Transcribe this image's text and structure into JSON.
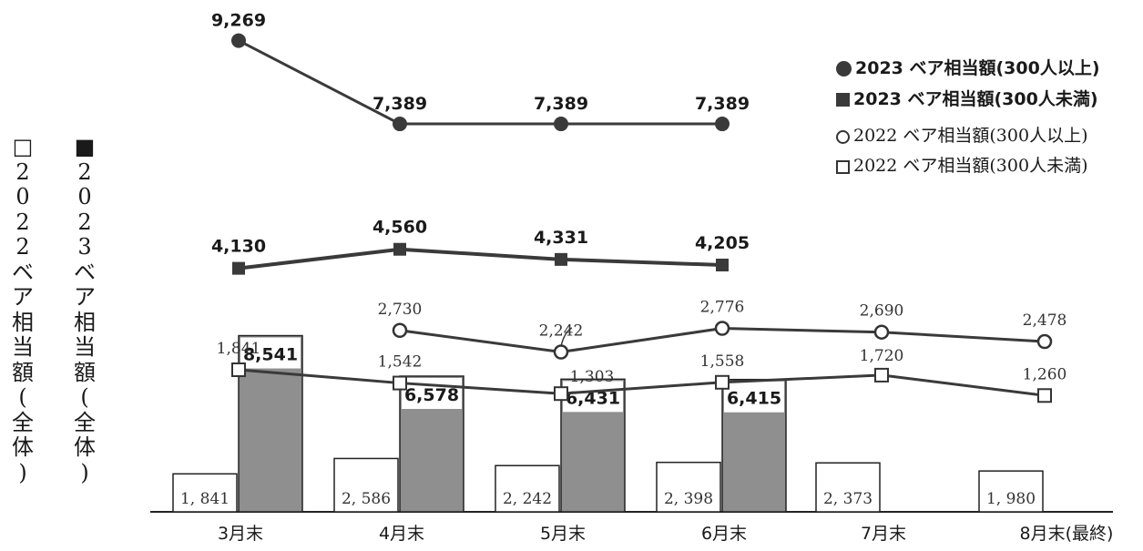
{
  "chart_data": {
    "type": "bar",
    "categories": [
      "3月末",
      "4月末",
      "5月末",
      "6月末",
      "7月末",
      "8月末(最終)"
    ],
    "bars": [
      {
        "name": "2022 ベア相当額(全体)",
        "values": [
          1841,
          2586,
          2242,
          2398,
          2373,
          1980
        ],
        "labels": [
          "1, 841",
          "2, 586",
          "2, 242",
          "2, 398",
          "2, 373",
          "1, 980"
        ],
        "color": "#ffffff"
      },
      {
        "name": "2023 ベア相当額(全体)",
        "values": [
          8541,
          6578,
          6431,
          6415,
          null,
          null
        ],
        "labels": [
          "8,541",
          "6,578",
          "6,431",
          "6,415",
          "",
          ""
        ],
        "color": "#8f8f8f"
      }
    ],
    "lines": [
      {
        "name": "2023 ベア相当額(300人以上)",
        "values": [
          9269,
          7389,
          7389,
          7389,
          null,
          null
        ],
        "labels": [
          "9,269",
          "7,389",
          "7,389",
          "7,389",
          "",
          ""
        ],
        "marker": "filled-circle"
      },
      {
        "name": "2023 ベア相当額(300人未満)",
        "values": [
          4130,
          4560,
          4331,
          4205,
          null,
          null
        ],
        "labels": [
          "4,130",
          "4,560",
          "4,331",
          "4,205",
          "",
          ""
        ],
        "marker": "filled-square"
      },
      {
        "name": "2022 ベア相当額(300人以上)",
        "values": [
          null,
          2730,
          2242,
          2776,
          2690,
          2478
        ],
        "labels": [
          "",
          "2,730",
          "2,242",
          "2,776",
          "2,690",
          "2,478"
        ],
        "marker": "open-circle"
      },
      {
        "name": "2022 ベア相当額(300人未満)",
        "values": [
          1841,
          1542,
          1303,
          1558,
          1720,
          1260
        ],
        "labels": [
          "1,841",
          "1,542",
          "1,303",
          "1,558",
          "1,720",
          "1,260"
        ],
        "marker": "open-square"
      }
    ],
    "y_left_label": "□2022ベア相当額(全体)",
    "y_left_label2": "■2023ベア相当額(全体)",
    "legend_position": "top-right",
    "grid": false
  },
  "legend": [
    {
      "text": "2023 ベア相当額(300人以上)",
      "icon": "filled-circle-icon"
    },
    {
      "text": "2023 ベア相当額(300人未満)",
      "icon": "filled-square-icon"
    },
    {
      "text": "2022 ベア相当額(300人以上)",
      "icon": "open-circle-icon"
    },
    {
      "text": "2022 ベア相当額(300人未満)",
      "icon": "open-square-icon"
    }
  ]
}
